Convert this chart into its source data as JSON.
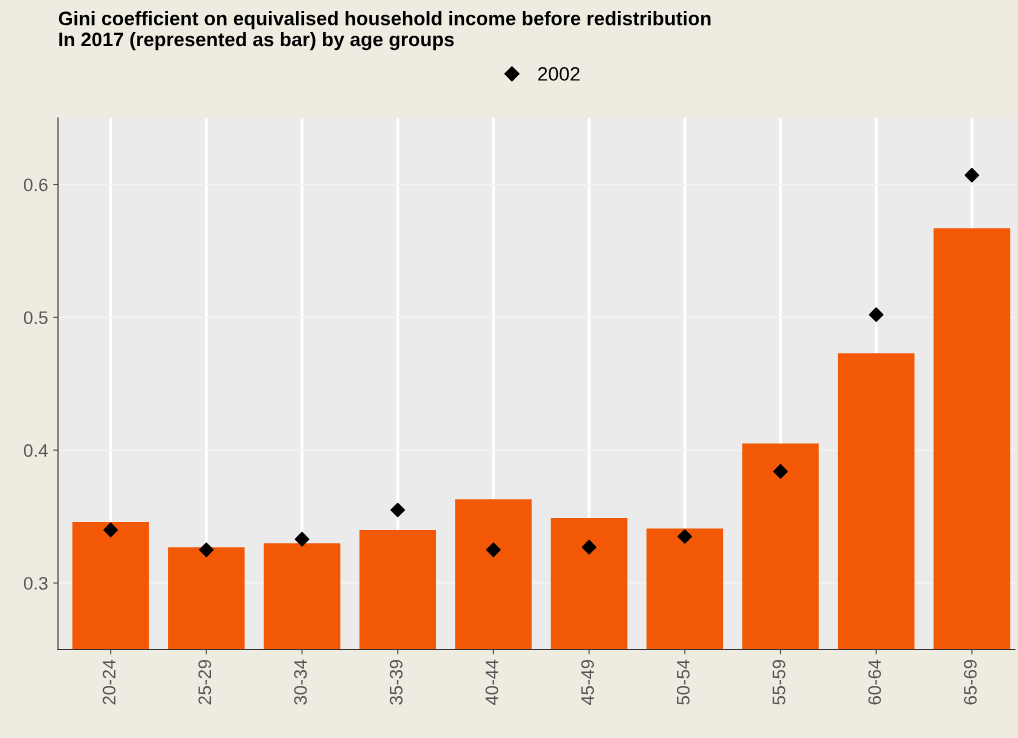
{
  "chart_data": {
    "type": "bar",
    "title": "Gini coefficient on equivalised household income before redistribution\nIn 2017 (represented as bar) by age groups",
    "categories": [
      "20-24",
      "25-29",
      "30-34",
      "35-39",
      "40-44",
      "45-49",
      "50-54",
      "55-59",
      "60-64",
      "65-69"
    ],
    "series": [
      {
        "color": "#f25805",
        "values": [
          0.346,
          0.327,
          0.33,
          0.34,
          0.363,
          0.349,
          0.341,
          0.405,
          0.473,
          0.567
        ]
      },
      {
        "type": "scatter",
        "name": "2002",
        "color": "#000000",
        "marker": "diamond",
        "values": [
          0.34,
          0.325,
          0.333,
          0.355,
          0.325,
          0.327,
          0.335,
          0.384,
          0.502,
          0.607
        ]
      }
    ],
    "ylim": [
      0.25,
      0.65
    ],
    "yticks": [
      0.3,
      0.4,
      0.5,
      0.6
    ],
    "grid": true,
    "legend": "top"
  }
}
